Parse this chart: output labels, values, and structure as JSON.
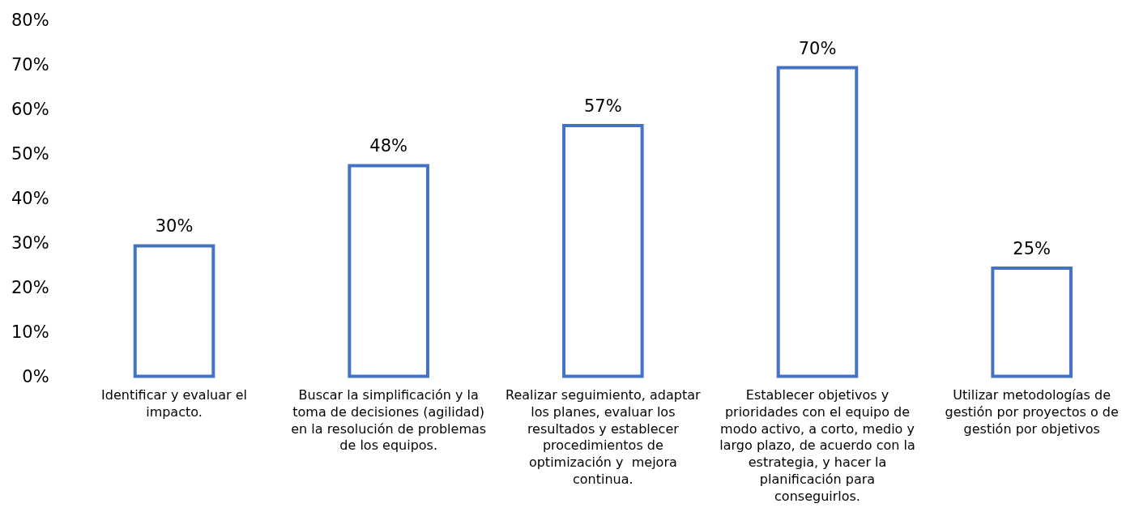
{
  "chart_data": {
    "type": "bar",
    "categories": [
      "Identificar y evaluar el impacto.",
      "Buscar la simplificación y la toma de decisiones (agilidad) en la resolución de problemas de los equipos.",
      "Realizar seguimiento, adaptar los planes, evaluar los resultados y establecer procedimientos de optimización y  mejora continua.",
      "Establecer objetivos y prioridades con el equipo de modo activo, a corto, medio y largo plazo, de acuerdo con la estrategia, y hacer la planificación para conseguirlos.",
      "Utilizar metodologías de gestión por proyectos o de gestión por objetivos"
    ],
    "values": [
      30,
      48,
      57,
      70,
      25
    ],
    "value_labels": [
      "30%",
      "48%",
      "57%",
      "70%",
      "25%"
    ],
    "color": "#4472c4",
    "ylim": [
      0,
      80
    ],
    "yticks": [
      {
        "value": 0,
        "label": "0%"
      },
      {
        "value": 10,
        "label": "10%"
      },
      {
        "value": 20,
        "label": "20%"
      },
      {
        "value": 30,
        "label": "30%"
      },
      {
        "value": 40,
        "label": "40%"
      },
      {
        "value": 50,
        "label": "50%"
      },
      {
        "value": 60,
        "label": "60%"
      },
      {
        "value": 70,
        "label": "70%"
      },
      {
        "value": 80,
        "label": "80%"
      }
    ],
    "grid": false,
    "legend": false
  }
}
